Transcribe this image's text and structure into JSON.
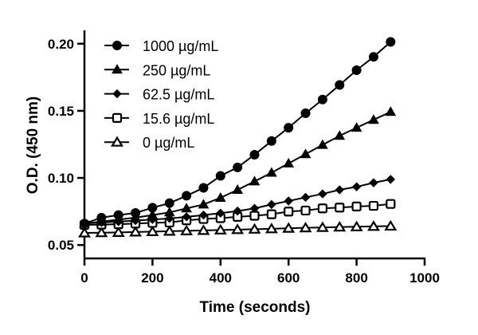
{
  "chart_data": {
    "type": "line",
    "title": "",
    "xlabel": "Time (seconds)",
    "ylabel": "O.D. (450 nm)",
    "xlim": [
      0,
      1000
    ],
    "ylim": [
      0.04,
      0.21
    ],
    "xticks": [
      "0",
      "200",
      "400",
      "600",
      "800",
      "1000"
    ],
    "yticks": [
      "0.05",
      "0.10",
      "0.15",
      "0.20"
    ],
    "grid": false,
    "legend_position": "top-left",
    "x": [
      0,
      50,
      100,
      150,
      200,
      250,
      300,
      350,
      400,
      450,
      500,
      550,
      600,
      650,
      700,
      750,
      800,
      850,
      900
    ],
    "series": [
      {
        "name": "1000 µg/mL",
        "marker": "filled-circle",
        "values": [
          0.066,
          0.0704,
          0.0723,
          0.0739,
          0.0778,
          0.0812,
          0.0867,
          0.0926,
          0.1015,
          0.1078,
          0.1173,
          0.1275,
          0.1374,
          0.1482,
          0.1584,
          0.1693,
          0.1803,
          0.1902,
          0.2014
        ]
      },
      {
        "name": "250 µg/mL",
        "marker": "filled-triangle",
        "values": [
          0.066,
          0.0674,
          0.069,
          0.0704,
          0.0723,
          0.0743,
          0.0773,
          0.0802,
          0.0852,
          0.0911,
          0.0974,
          0.1039,
          0.1108,
          0.1177,
          0.1246,
          0.1314,
          0.1374,
          0.1433,
          0.1492
        ]
      },
      {
        "name": "62.5 µg/mL",
        "marker": "filled-diamond",
        "values": [
          0.066,
          0.0668,
          0.0674,
          0.0682,
          0.069,
          0.0698,
          0.071,
          0.0723,
          0.0737,
          0.0753,
          0.0773,
          0.0802,
          0.0828,
          0.0855,
          0.0881,
          0.0911,
          0.0934,
          0.0964,
          0.0989
        ]
      },
      {
        "name": "15.6 µg/mL",
        "marker": "open-square",
        "values": [
          0.065,
          0.0652,
          0.0655,
          0.066,
          0.0665,
          0.0668,
          0.0684,
          0.0694,
          0.07,
          0.071,
          0.0718,
          0.0729,
          0.0749,
          0.0757,
          0.0773,
          0.0779,
          0.0787,
          0.0792,
          0.0806
        ]
      },
      {
        "name": "0 µg/mL",
        "marker": "open-triangle",
        "values": [
          0.059,
          0.0592,
          0.0594,
          0.0597,
          0.06,
          0.0603,
          0.0606,
          0.0609,
          0.0612,
          0.0615,
          0.0618,
          0.0621,
          0.0625,
          0.0628,
          0.0631,
          0.0634,
          0.0636,
          0.0639,
          0.0641
        ]
      }
    ]
  }
}
